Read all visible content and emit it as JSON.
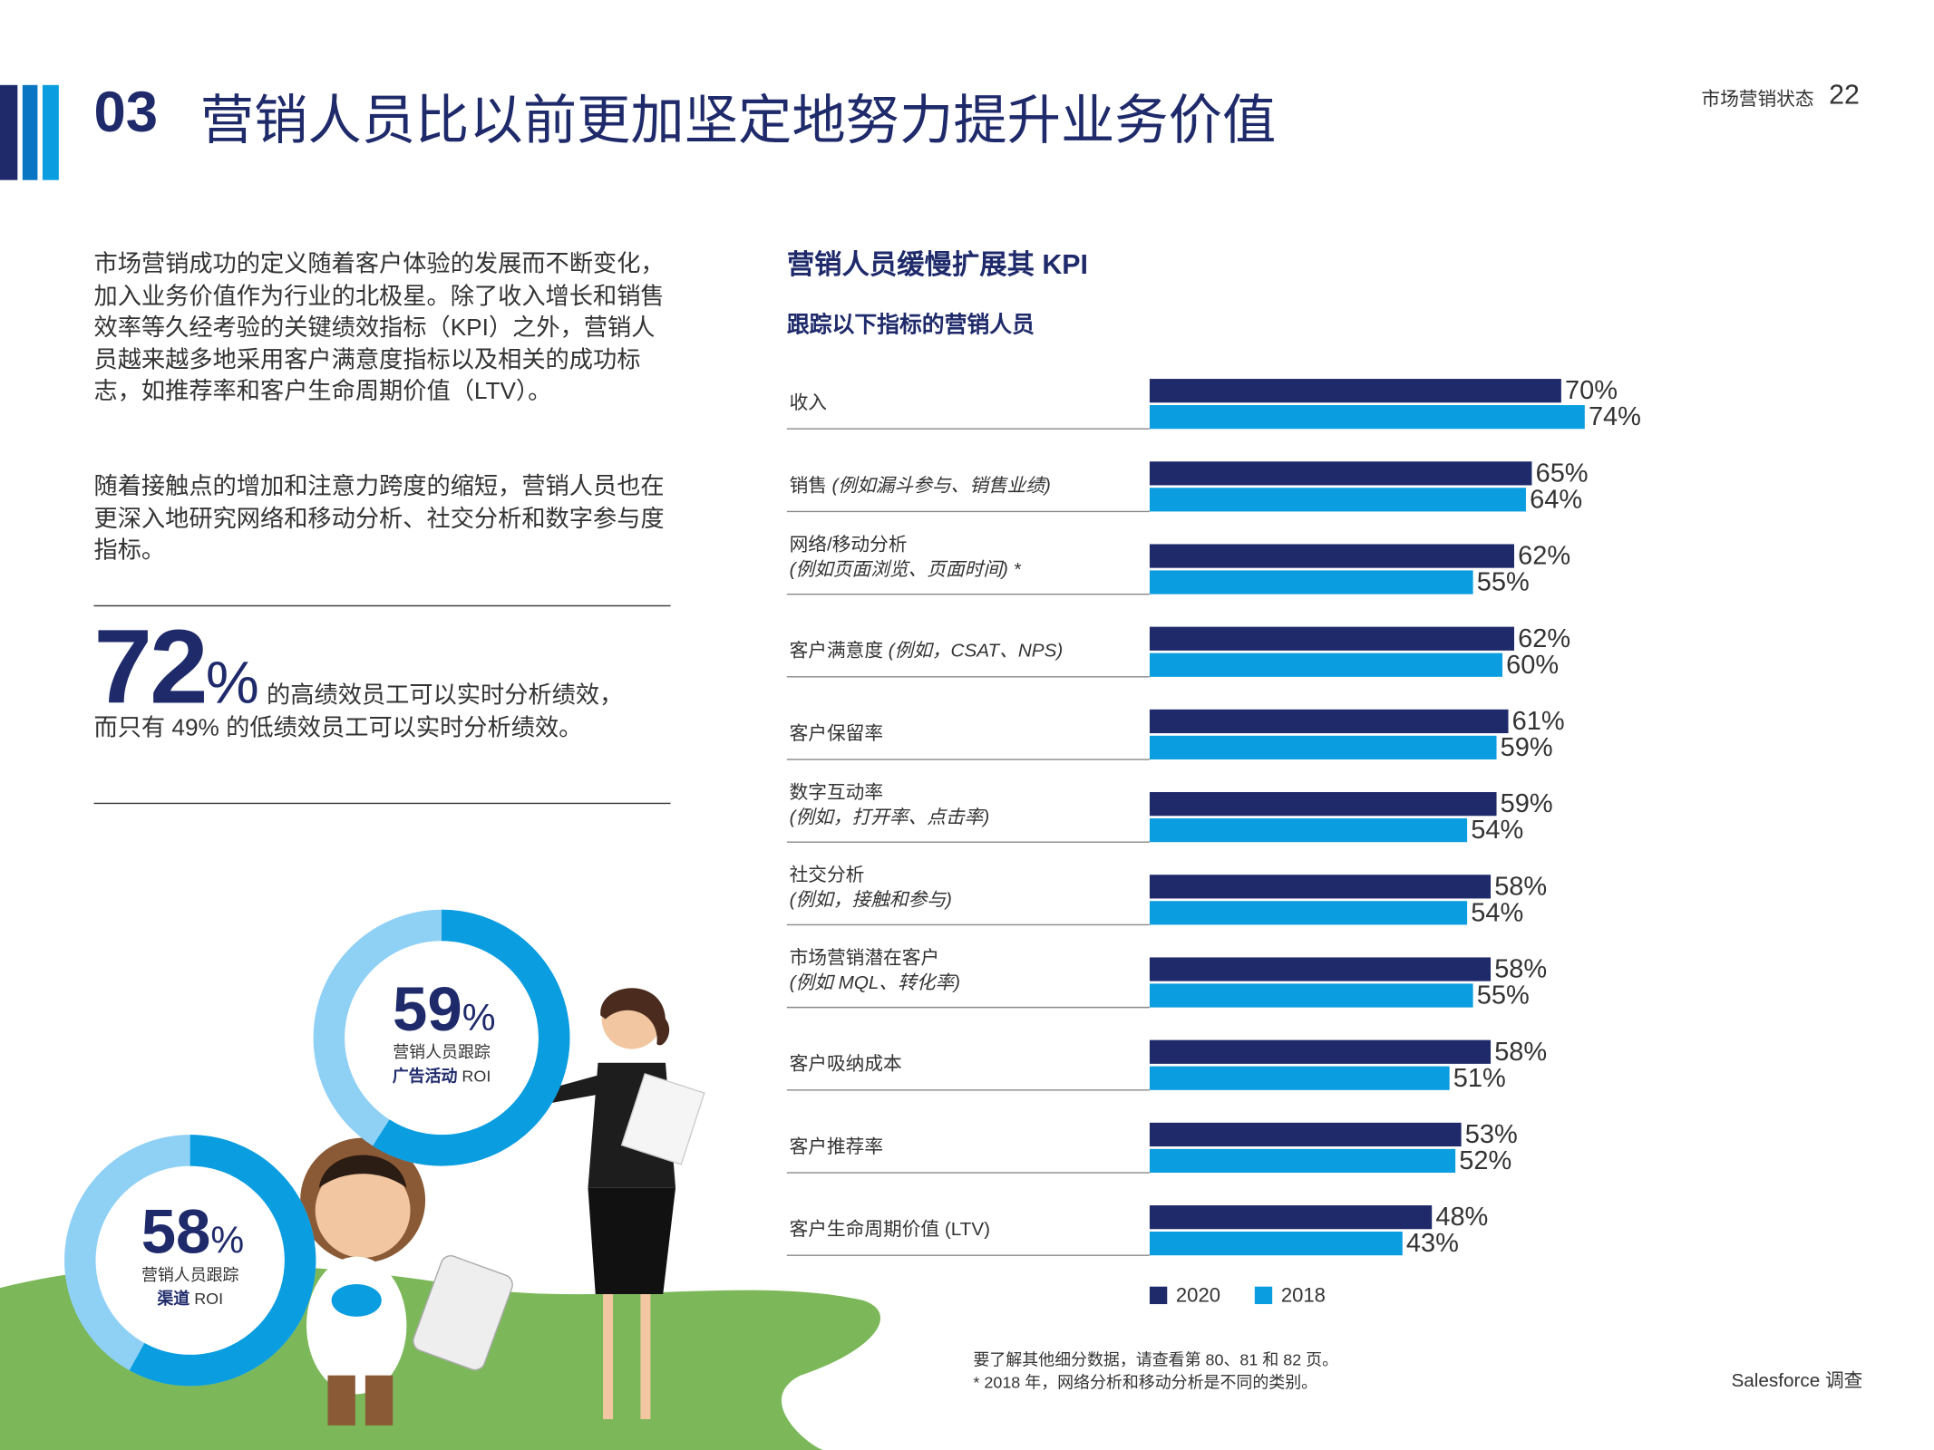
{
  "header": {
    "number": "03",
    "title": "营销人员比以前更加坚定地努力提升业务价值",
    "section": "市场营销状态",
    "page": "22"
  },
  "body": {
    "paragraphs": [
      "市场营销成功的定义随着客户体验的发展而不断变化，加入业务价值作为行业的北极星。除了收入增长和销售效率等久经考验的关键绩效指标（KPI）之外，营销人员越来越多地采用客户满意度指标以及相关的成功标志，如推荐率和客户生命周期价值（LTV）。",
      "随着接触点的增加和注意力跨度的缩短，营销人员也在更深入地研究网络和移动分析、社交分析和数字参与度指标。"
    ]
  },
  "stat": {
    "number": "72",
    "unit": "%",
    "text": "的高绩效员工可以实时分析绩效，而只有 49% 的低绩效员工可以实时分析绩效。"
  },
  "donuts": [
    {
      "value": 59,
      "label": "59",
      "unit": "%",
      "line1": "营销人员跟踪",
      "line2_bold": "广告活动",
      "line2": " ROI"
    },
    {
      "value": 58,
      "label": "58",
      "unit": "%",
      "line1": "营销人员跟踪",
      "line2_bold": "渠道",
      "line2": " ROI"
    }
  ],
  "chart_data": {
    "type": "bar",
    "orientation": "horizontal",
    "title": "营销人员缓慢扩展其 KPI",
    "subtitle": "跟踪以下指标的营销人员",
    "categories": [
      "收入",
      "销售",
      "网络/移动分析",
      "客户满意度",
      "客户保留率",
      "数字互动率",
      "社交分析",
      "市场营销潜在客户",
      "客户吸纳成本",
      "客户推荐率",
      "客户生命周期价值 (LTV)"
    ],
    "category_notes": [
      null,
      "(例如漏斗参与、销售业绩)",
      "(例如页面浏览、页面时间) *",
      "(例如，CSAT、NPS)",
      null,
      "(例如，打开率、点击率)",
      "(例如，接触和参与)",
      "(例如 MQL、转化率)",
      null,
      null,
      null
    ],
    "series": [
      {
        "name": "2020",
        "color": "#1f2a6b",
        "values": [
          70,
          65,
          62,
          62,
          61,
          59,
          58,
          58,
          58,
          53,
          48
        ],
        "value_labels": [
          "70%",
          "65%",
          "62%",
          "62%",
          "61%",
          "59%",
          "58%",
          "58%",
          "58%",
          "53%",
          "48%"
        ]
      },
      {
        "name": "2018",
        "color": "#0a9de0",
        "values": [
          74,
          64,
          55,
          60,
          59,
          54,
          54,
          55,
          51,
          52,
          43
        ],
        "value_labels": [
          "74%",
          "64%",
          "55%",
          "60%",
          "59%",
          "54%",
          "54%",
          "55%",
          "51%",
          "52%",
          "43%"
        ]
      }
    ],
    "xlim": [
      0,
      100
    ],
    "legend": "bottom-left"
  },
  "footer": {
    "notes": [
      "要了解其他细分数据，请查看第 80、81 和 82 页。",
      "* 2018 年，网络分析和移动分析是不同的类别。"
    ],
    "source": "Salesforce 调查"
  }
}
